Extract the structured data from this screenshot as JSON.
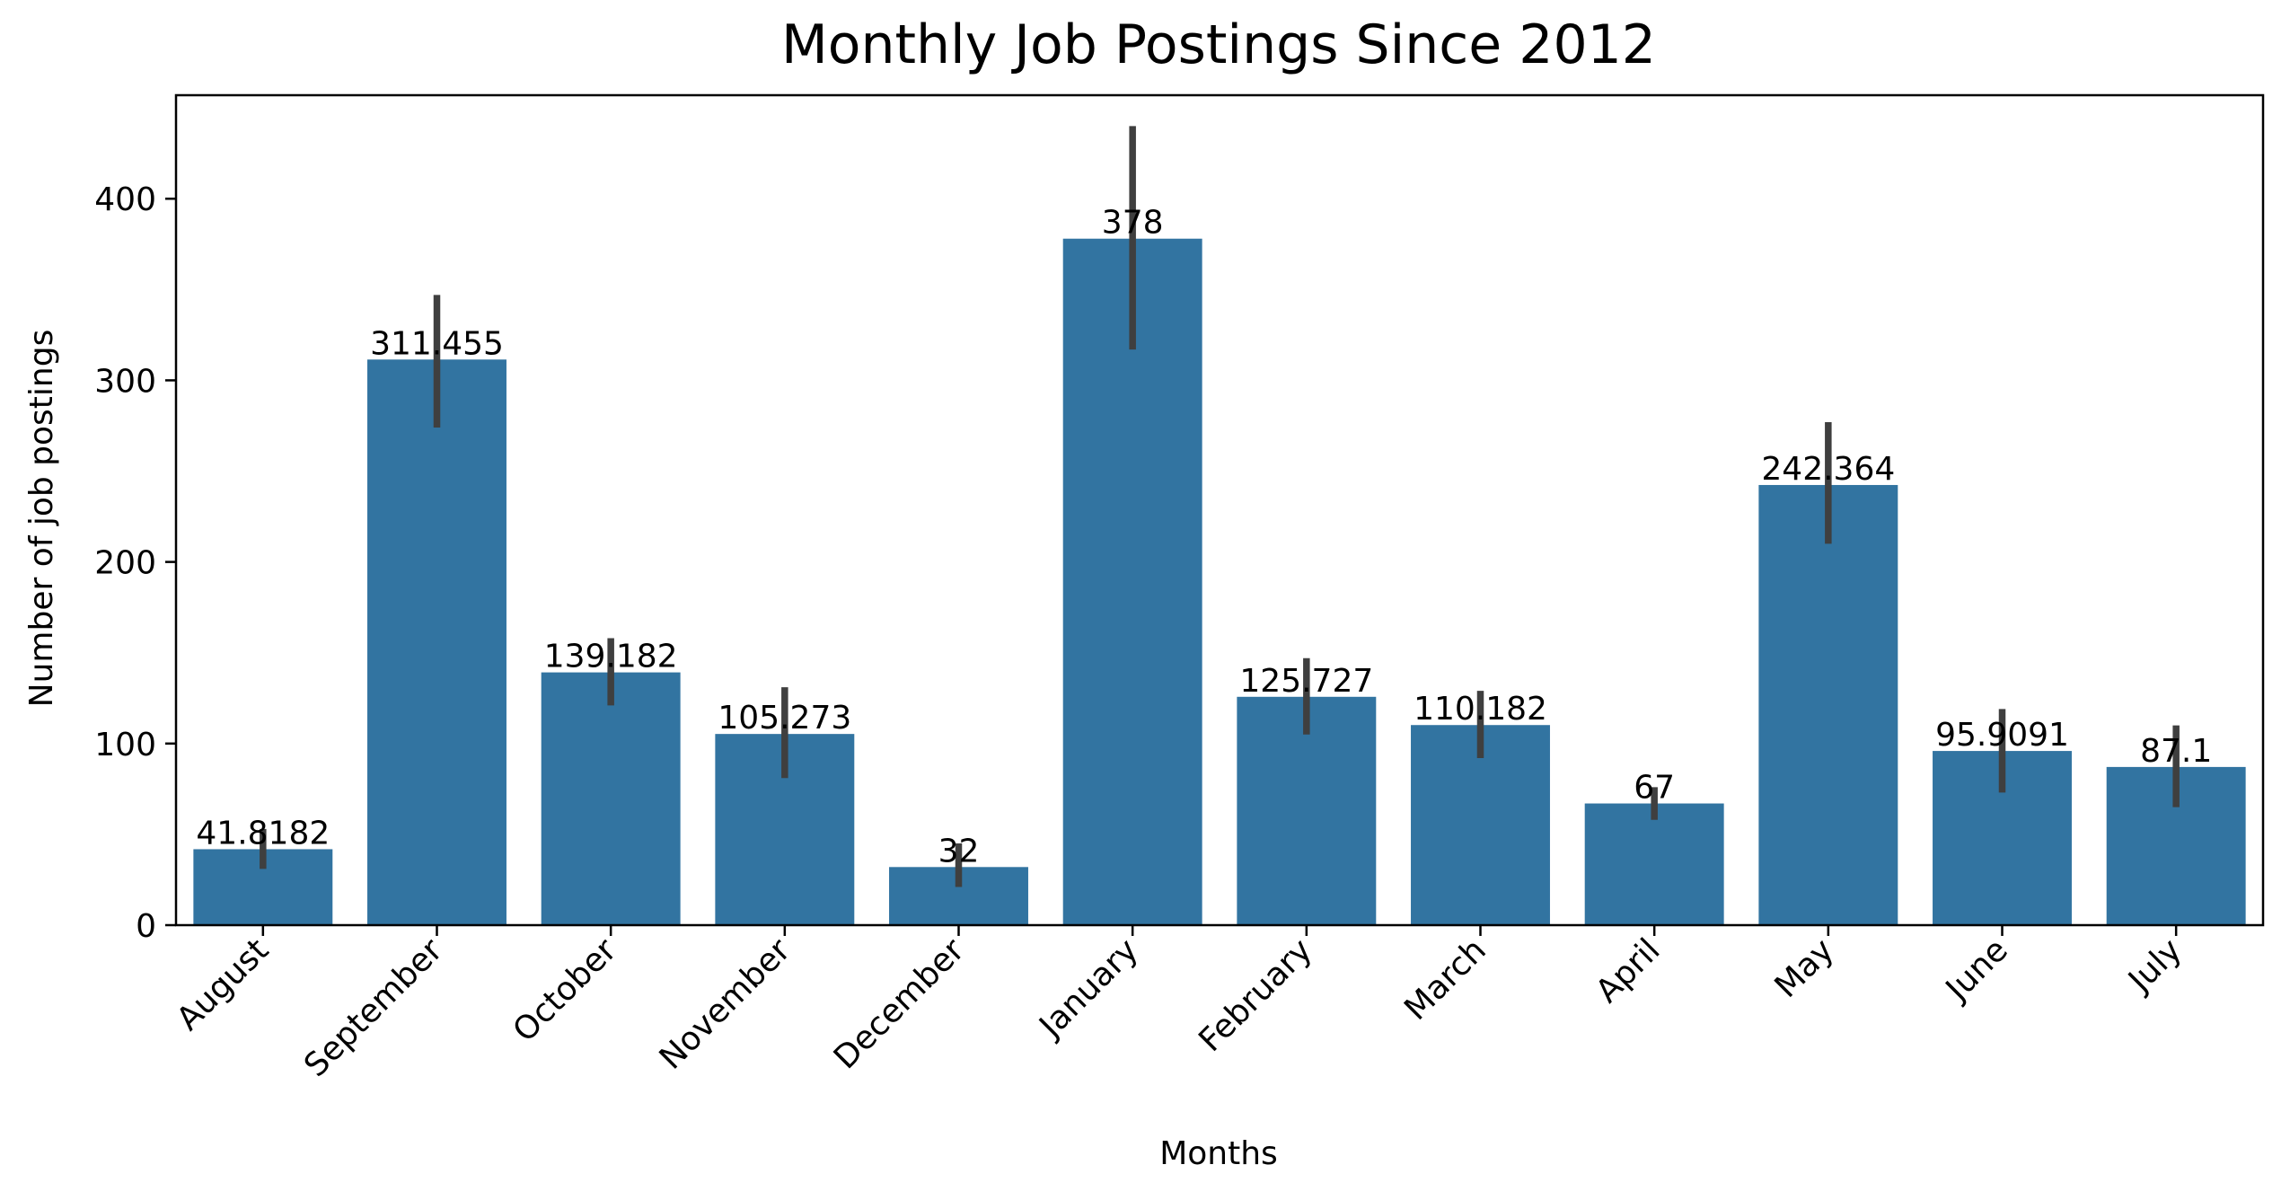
{
  "chart_data": {
    "type": "bar",
    "title": "Monthly Job Postings Since 2012",
    "xlabel": "Months",
    "ylabel": "Number of job postings",
    "categories": [
      "August",
      "September",
      "October",
      "November",
      "December",
      "January",
      "February",
      "March",
      "April",
      "May",
      "June",
      "July"
    ],
    "values": [
      41.8182,
      311.455,
      139.182,
      105.273,
      32,
      378,
      125.727,
      110.182,
      67,
      242.364,
      95.9091,
      87.1
    ],
    "value_labels": [
      "41.8182",
      "311.455",
      "139.182",
      "105.273",
      "32",
      "378",
      "125.727",
      "110.182",
      "67",
      "242.364",
      "95.9091",
      "87.1"
    ],
    "error_bars": [
      {
        "low": 31,
        "high": 53
      },
      {
        "low": 274,
        "high": 347
      },
      {
        "low": 121,
        "high": 158
      },
      {
        "low": 81,
        "high": 131
      },
      {
        "low": 21,
        "high": 45
      },
      {
        "low": 317,
        "high": 440
      },
      {
        "low": 105,
        "high": 147
      },
      {
        "low": 92,
        "high": 129
      },
      {
        "low": 58,
        "high": 76
      },
      {
        "low": 210,
        "high": 277
      },
      {
        "low": 73,
        "high": 119
      },
      {
        "low": 65,
        "high": 110
      }
    ],
    "yticks": [
      "0",
      "100",
      "200",
      "300",
      "400"
    ],
    "ytick_values": [
      0,
      100,
      200,
      300,
      400
    ],
    "ylim": [
      0,
      457
    ],
    "grid": false,
    "legend": "none",
    "colors": {
      "bar": "#3274a1",
      "error_bar": "#3f3f3f",
      "axis": "#000000"
    }
  }
}
